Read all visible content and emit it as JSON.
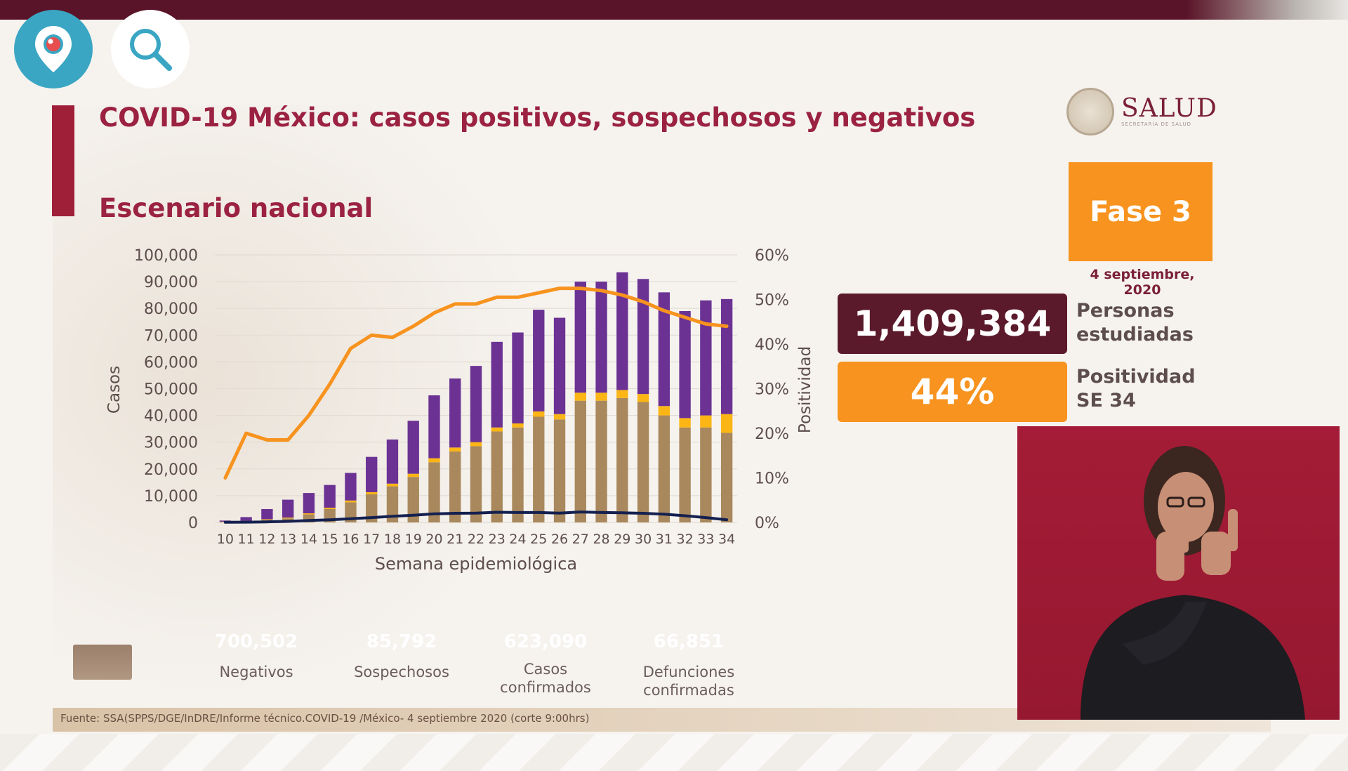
{
  "app": {
    "periscope_icon": "periscope-icon",
    "search_icon": "search-icon"
  },
  "slide": {
    "title": "COVID-19 México: casos positivos, sospechosos y negativos",
    "subtitle": "Escenario nacional",
    "brand": {
      "name": "SALUD",
      "tagline": "SECRETARÍA DE SALUD"
    },
    "phase": {
      "label": "Fase 3",
      "date": "4 septiembre, 2020"
    },
    "stats": [
      {
        "value": "1,409,384",
        "label_line1": "Personas",
        "label_line2": "estudiadas"
      },
      {
        "value": "44%",
        "label_line1": "Positividad",
        "label_line2": "SE 34"
      }
    ],
    "legend": [
      {
        "value": "700,502",
        "label_line1": "Negativos",
        "label_line2": "",
        "color": "#6b3294"
      },
      {
        "value": "85,792",
        "label_line1": "Sospechosos",
        "label_line2": "",
        "color": "#fbb515"
      },
      {
        "value": "623,090",
        "label_line1": "Casos",
        "label_line2": "confirmados",
        "color": "#a8885c"
      },
      {
        "value": "66,851",
        "label_line1": "Defunciones",
        "label_line2": "confirmadas",
        "color": "#14204f"
      }
    ],
    "footer": "Fuente: SSA(SPPS/DGE/InDRE/Informe técnico.COVID-19 /México- 4 septiembre 2020 (corte 9:00hrs)"
  },
  "chart_data": {
    "type": "bar",
    "stacked": true,
    "xlabel": "Semana epidemiológica",
    "ylabel": "Casos",
    "y2label": "Positividad",
    "ylim": [
      0,
      100000
    ],
    "y2lim": [
      0,
      60
    ],
    "yticks": [
      "0",
      "10,000",
      "20,000",
      "30,000",
      "40,000",
      "50,000",
      "60,000",
      "70,000",
      "80,000",
      "90,000",
      "100,000"
    ],
    "y2ticks": [
      "0%",
      "10%",
      "20%",
      "30%",
      "40%",
      "50%",
      "60%"
    ],
    "grid": true,
    "categories": [
      "10",
      "11",
      "12",
      "13",
      "14",
      "15",
      "16",
      "17",
      "18",
      "19",
      "20",
      "21",
      "22",
      "23",
      "24",
      "25",
      "26",
      "27",
      "28",
      "29",
      "30",
      "31",
      "32",
      "33",
      "34"
    ],
    "series": [
      {
        "name": "Casos confirmados",
        "kind": "bar",
        "color": "#a8885c",
        "values": [
          200,
          500,
          1000,
          1500,
          3000,
          5000,
          7500,
          10500,
          13500,
          17000,
          22500,
          26500,
          28500,
          34000,
          35500,
          39500,
          38500,
          45500,
          45500,
          46500,
          45000,
          40000,
          35500,
          35500,
          33500
        ]
      },
      {
        "name": "Sospechosos",
        "kind": "bar",
        "color": "#fbb515",
        "values": [
          100,
          100,
          200,
          300,
          400,
          500,
          700,
          800,
          1000,
          1200,
          1500,
          1500,
          1500,
          1500,
          1500,
          2000,
          2000,
          3000,
          3000,
          3000,
          3000,
          3500,
          3500,
          4500,
          7000
        ]
      },
      {
        "name": "Negativos",
        "kind": "bar",
        "color": "#6b3294",
        "values": [
          400,
          1400,
          3800,
          6700,
          7600,
          8500,
          10300,
          13200,
          16500,
          19800,
          23500,
          25800,
          28500,
          32000,
          34000,
          38000,
          36000,
          41500,
          41500,
          44000,
          43000,
          42500,
          40000,
          43000,
          43000
        ]
      },
      {
        "name": "Defunciones confirmadas",
        "kind": "line",
        "color": "#14204f",
        "values": [
          50,
          100,
          200,
          400,
          700,
          1000,
          1400,
          1800,
          2300,
          2700,
          3200,
          3400,
          3500,
          3800,
          3700,
          3700,
          3500,
          3900,
          3700,
          3600,
          3400,
          3100,
          2500,
          1800,
          1000
        ]
      },
      {
        "name": "Positividad",
        "kind": "line",
        "axis": "right",
        "color": "#f7931e",
        "values": [
          10,
          20,
          18.5,
          18.5,
          24,
          31,
          39,
          42,
          41.5,
          44,
          47,
          49,
          49,
          50.5,
          50.5,
          51.5,
          52.5,
          52.5,
          52,
          51,
          49.5,
          47.5,
          46,
          44.5,
          44
        ]
      }
    ]
  }
}
